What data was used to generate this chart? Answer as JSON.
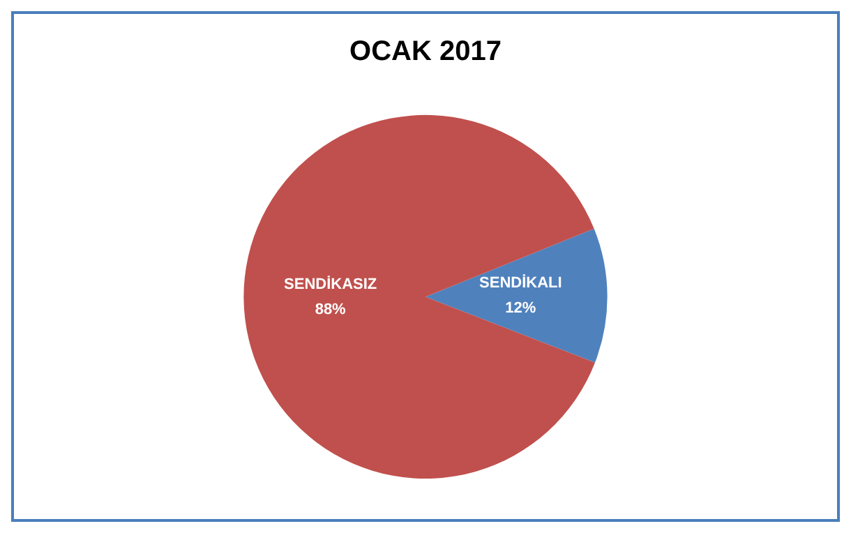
{
  "chart_data": {
    "type": "pie",
    "title": "OCAK 2017",
    "categories": [
      "SENDİKALI",
      "SENDİKASIZ"
    ],
    "values": [
      12,
      88
    ],
    "colors": [
      "#4f81bd",
      "#c0504d"
    ],
    "value_labels": [
      "12%",
      "88%"
    ],
    "legend": false
  }
}
